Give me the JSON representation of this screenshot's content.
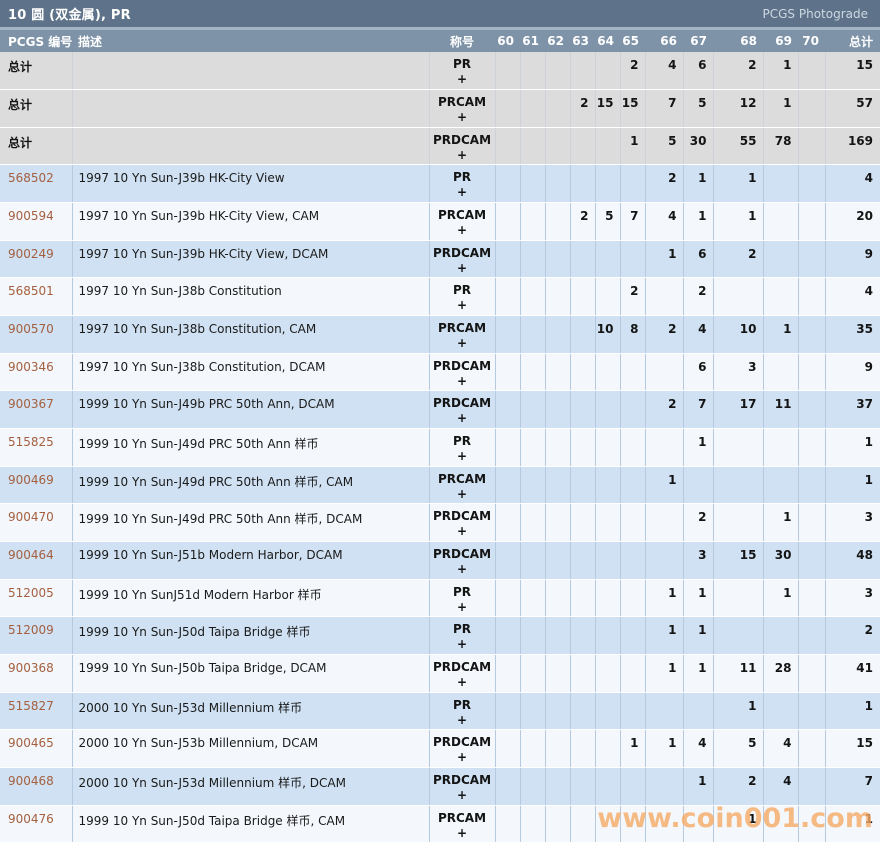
{
  "page": {
    "title": "10 圆 (双金属), PR",
    "photograde_link": "PCGS Photograde",
    "watermark": "www.coin001.com"
  },
  "table": {
    "headers": {
      "pcgs_number": "PCGS 编号",
      "description": "描述",
      "designation": "称号",
      "grades": [
        "60",
        "61",
        "62",
        "63",
        "64",
        "65",
        "66",
        "67",
        "68",
        "69",
        "70"
      ],
      "total": "总计"
    },
    "designation_suffix": "+",
    "rows": [
      {
        "pcgs_number": "总计",
        "description": "",
        "designation": "PR",
        "grades": [
          "",
          "",
          "",
          "",
          "",
          "2",
          "4",
          "6",
          "2",
          "1",
          ""
        ],
        "total": "15",
        "is_total": true
      },
      {
        "pcgs_number": "总计",
        "description": "",
        "designation": "PRCAM",
        "grades": [
          "",
          "",
          "",
          "2",
          "15",
          "15",
          "7",
          "5",
          "12",
          "1",
          ""
        ],
        "total": "57",
        "is_total": true
      },
      {
        "pcgs_number": "总计",
        "description": "",
        "designation": "PRDCAM",
        "grades": [
          "",
          "",
          "",
          "",
          "",
          "1",
          "5",
          "30",
          "55",
          "78",
          ""
        ],
        "total": "169",
        "is_total": true
      },
      {
        "pcgs_number": "568502",
        "description": "1997 10 Yn Sun-J39b HK-City View",
        "designation": "PR",
        "grades": [
          "",
          "",
          "",
          "",
          "",
          "",
          "2",
          "1",
          "1",
          "",
          ""
        ],
        "total": "4",
        "is_total": false
      },
      {
        "pcgs_number": "900594",
        "description": "1997 10 Yn Sun-J39b HK-City View, CAM",
        "designation": "PRCAM",
        "grades": [
          "",
          "",
          "",
          "2",
          "5",
          "7",
          "4",
          "1",
          "1",
          "",
          ""
        ],
        "total": "20",
        "is_total": false
      },
      {
        "pcgs_number": "900249",
        "description": "1997 10 Yn Sun-J39b HK-City View, DCAM",
        "designation": "PRDCAM",
        "grades": [
          "",
          "",
          "",
          "",
          "",
          "",
          "1",
          "6",
          "2",
          "",
          ""
        ],
        "total": "9",
        "is_total": false
      },
      {
        "pcgs_number": "568501",
        "description": "1997 10 Yn Sun-J38b Constitution",
        "designation": "PR",
        "grades": [
          "",
          "",
          "",
          "",
          "",
          "2",
          "",
          "2",
          "",
          "",
          ""
        ],
        "total": "4",
        "is_total": false
      },
      {
        "pcgs_number": "900570",
        "description": "1997 10 Yn Sun-J38b Constitution, CAM",
        "designation": "PRCAM",
        "grades": [
          "",
          "",
          "",
          "",
          "10",
          "8",
          "2",
          "4",
          "10",
          "1",
          ""
        ],
        "total": "35",
        "is_total": false
      },
      {
        "pcgs_number": "900346",
        "description": "1997 10 Yn Sun-J38b Constitution, DCAM",
        "designation": "PRDCAM",
        "grades": [
          "",
          "",
          "",
          "",
          "",
          "",
          "",
          "6",
          "3",
          "",
          ""
        ],
        "total": "9",
        "is_total": false
      },
      {
        "pcgs_number": "900367",
        "description": "1999 10 Yn Sun-J49b PRC 50th Ann, DCAM",
        "designation": "PRDCAM",
        "grades": [
          "",
          "",
          "",
          "",
          "",
          "",
          "2",
          "7",
          "17",
          "11",
          ""
        ],
        "total": "37",
        "is_total": false
      },
      {
        "pcgs_number": "515825",
        "description": "1999 10 Yn Sun-J49d PRC 50th Ann 样币",
        "designation": "PR",
        "grades": [
          "",
          "",
          "",
          "",
          "",
          "",
          "",
          "1",
          "",
          "",
          ""
        ],
        "total": "1",
        "is_total": false
      },
      {
        "pcgs_number": "900469",
        "description": "1999 10 Yn Sun-J49d PRC 50th Ann 样币, CAM",
        "designation": "PRCAM",
        "grades": [
          "",
          "",
          "",
          "",
          "",
          "",
          "1",
          "",
          "",
          "",
          ""
        ],
        "total": "1",
        "is_total": false
      },
      {
        "pcgs_number": "900470",
        "description": "1999 10 Yn Sun-J49d PRC 50th Ann 样币, DCAM",
        "designation": "PRDCAM",
        "grades": [
          "",
          "",
          "",
          "",
          "",
          "",
          "",
          "2",
          "",
          "1",
          ""
        ],
        "total": "3",
        "is_total": false
      },
      {
        "pcgs_number": "900464",
        "description": "1999 10 Yn Sun-J51b Modern Harbor, DCAM",
        "designation": "PRDCAM",
        "grades": [
          "",
          "",
          "",
          "",
          "",
          "",
          "",
          "3",
          "15",
          "30",
          ""
        ],
        "total": "48",
        "is_total": false
      },
      {
        "pcgs_number": "512005",
        "description": "1999 10 Yn SunJ51d Modern Harbor 样币",
        "designation": "PR",
        "grades": [
          "",
          "",
          "",
          "",
          "",
          "",
          "1",
          "1",
          "",
          "1",
          ""
        ],
        "total": "3",
        "is_total": false
      },
      {
        "pcgs_number": "512009",
        "description": "1999 10 Yn Sun-J50d Taipa Bridge 样币",
        "designation": "PR",
        "grades": [
          "",
          "",
          "",
          "",
          "",
          "",
          "1",
          "1",
          "",
          "",
          ""
        ],
        "total": "2",
        "is_total": false
      },
      {
        "pcgs_number": "900368",
        "description": "1999 10 Yn Sun-J50b Taipa Bridge, DCAM",
        "designation": "PRDCAM",
        "grades": [
          "",
          "",
          "",
          "",
          "",
          "",
          "1",
          "1",
          "11",
          "28",
          ""
        ],
        "total": "41",
        "is_total": false
      },
      {
        "pcgs_number": "515827",
        "description": "2000 10 Yn Sun-J53d Millennium 样币",
        "designation": "PR",
        "grades": [
          "",
          "",
          "",
          "",
          "",
          "",
          "",
          "",
          "1",
          "",
          ""
        ],
        "total": "1",
        "is_total": false
      },
      {
        "pcgs_number": "900465",
        "description": "2000 10 Yn Sun-J53b Millennium, DCAM",
        "designation": "PRDCAM",
        "grades": [
          "",
          "",
          "",
          "",
          "",
          "1",
          "1",
          "4",
          "5",
          "4",
          ""
        ],
        "total": "15",
        "is_total": false
      },
      {
        "pcgs_number": "900468",
        "description": "2000 10 Yn Sun-J53d Millennium 样币, DCAM",
        "designation": "PRDCAM",
        "grades": [
          "",
          "",
          "",
          "",
          "",
          "",
          "",
          "1",
          "2",
          "4",
          ""
        ],
        "total": "7",
        "is_total": false
      },
      {
        "pcgs_number": "900476",
        "description": "1999 10 Yn Sun-J50d Taipa Bridge 样币, CAM",
        "designation": "PRCAM",
        "grades": [
          "",
          "",
          "",
          "",
          "",
          "",
          "",
          "",
          "1",
          "",
          ""
        ],
        "total": "1",
        "is_total": false
      }
    ]
  },
  "colors": {
    "title_bar_bg": "#5e7389",
    "title_divider": "#a3b5c5",
    "header_bg": "#7e93a8",
    "photograde_text": "#ccd7e1",
    "total_row_bg": "#dcdcdc",
    "row_alt_bg": "#cfe1f2",
    "row_bg": "#f4f8fc",
    "grid_line": "#b5cade",
    "pcgs_number_color": "#a45f3f",
    "watermark_color": "#f6ab67"
  }
}
